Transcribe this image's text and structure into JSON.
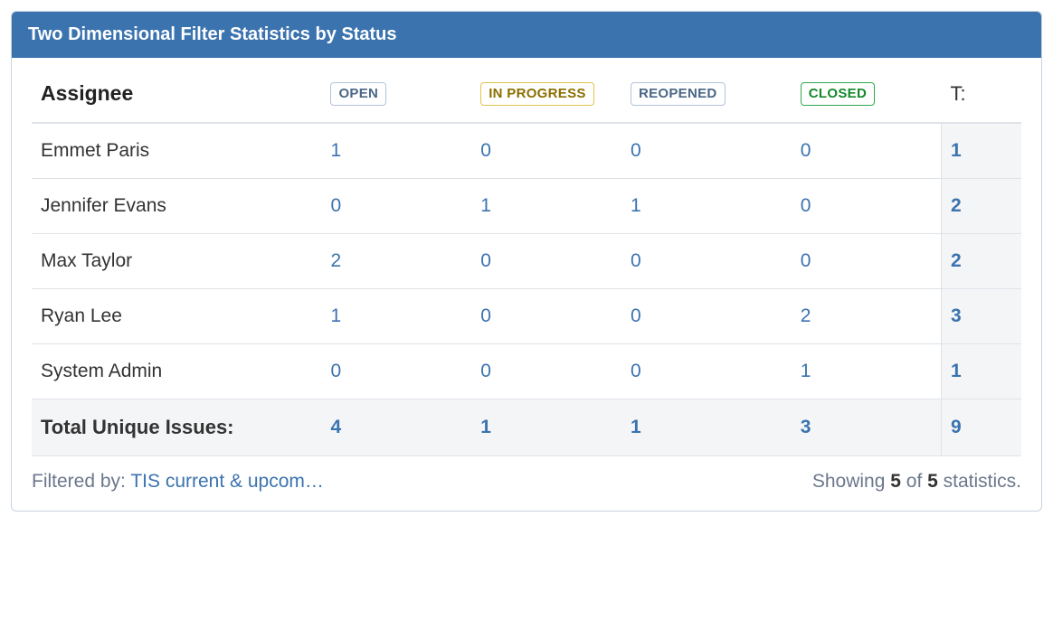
{
  "panel": {
    "title": "Two Dimensional Filter Statistics by Status"
  },
  "table": {
    "assignee_header": "Assignee",
    "total_header": "T:",
    "status_columns": [
      {
        "label": "OPEN",
        "loz_class": "loz-open"
      },
      {
        "label": "IN PROGRESS",
        "loz_class": "loz-progress"
      },
      {
        "label": "REOPENED",
        "loz_class": "loz-reopened"
      },
      {
        "label": "CLOSED",
        "loz_class": "loz-closed"
      }
    ],
    "rows": [
      {
        "assignee": "Emmet Paris",
        "values": [
          "1",
          "0",
          "0",
          "0"
        ],
        "total": "1"
      },
      {
        "assignee": "Jennifer Evans",
        "values": [
          "0",
          "1",
          "1",
          "0"
        ],
        "total": "2"
      },
      {
        "assignee": "Max Taylor",
        "values": [
          "2",
          "0",
          "0",
          "0"
        ],
        "total": "2"
      },
      {
        "assignee": "Ryan Lee",
        "values": [
          "1",
          "0",
          "0",
          "2"
        ],
        "total": "3"
      },
      {
        "assignee": "System Admin",
        "values": [
          "0",
          "0",
          "0",
          "1"
        ],
        "total": "1"
      }
    ],
    "totals": {
      "label": "Total Unique Issues:",
      "values": [
        "4",
        "1",
        "1",
        "3"
      ],
      "total": "9"
    }
  },
  "footer": {
    "filtered_by_label": "Filtered by: ",
    "filter_name": "TIS current & upcom…",
    "showing_prefix": "Showing ",
    "showing_count": "5",
    "showing_of": " of ",
    "showing_total": "5",
    "showing_suffix": " statistics."
  },
  "colors": {
    "header_bg": "#3b73af",
    "link": "#3b73af",
    "border": "#dfe3e8",
    "panel_border": "#c9d3df",
    "shade_bg": "#f4f5f7",
    "muted_text": "#6b778c"
  }
}
